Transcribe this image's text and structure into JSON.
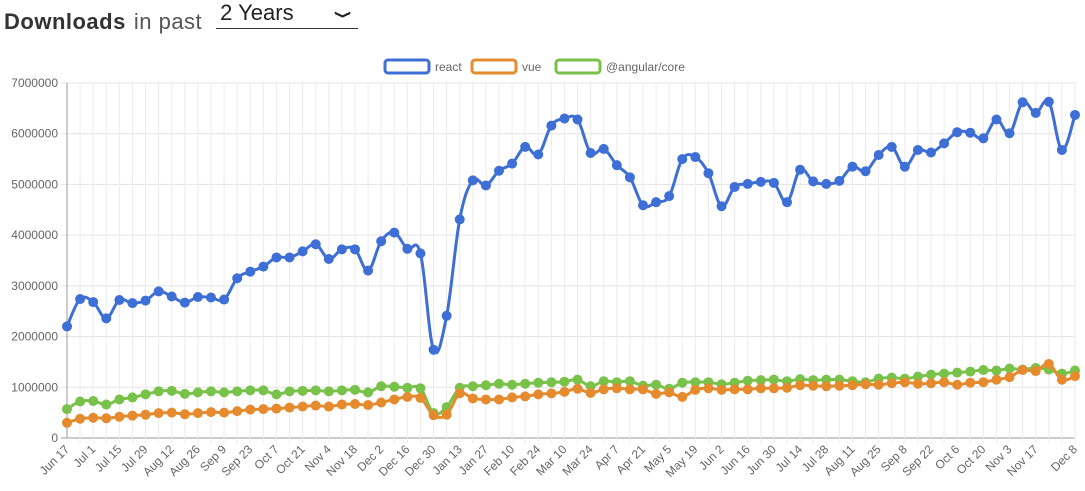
{
  "header": {
    "title": "Downloads",
    "subtitle": "in past",
    "range_value": "2 Years",
    "range_icon": "chevron-down-icon"
  },
  "chart_data": {
    "type": "line",
    "x": [
      "Jun 17",
      "Jun 24",
      "Jul 1",
      "Jul 8",
      "Jul 15",
      "Jul 22",
      "Jul 29",
      "Aug 5",
      "Aug 12",
      "Aug 19",
      "Aug 26",
      "Sep 2",
      "Sep 9",
      "Sep 16",
      "Sep 23",
      "Sep 30",
      "Oct 7",
      "Oct 14",
      "Oct 21",
      "Oct 28",
      "Nov 4",
      "Nov 11",
      "Nov 18",
      "Nov 25",
      "Dec 2",
      "Dec 9",
      "Dec 16",
      "Dec 23",
      "Dec 30",
      "Jan 6",
      "Jan 13",
      "Jan 20",
      "Jan 27",
      "Feb 3",
      "Feb 10",
      "Feb 17",
      "Feb 24",
      "Mar 3",
      "Mar 10",
      "Mar 17",
      "Mar 24",
      "Mar 31",
      "Apr 7",
      "Apr 14",
      "Apr 21",
      "Apr 28",
      "May 5",
      "May 12",
      "May 19",
      "May 26",
      "Jun 2",
      "Jun 9",
      "Jun 16",
      "Jun 23",
      "Jun 30",
      "Jul 7",
      "Jul 14",
      "Jul 21",
      "Jul 28",
      "Aug 4",
      "Aug 11",
      "Aug 18",
      "Aug 25",
      "Sep 1",
      "Sep 8",
      "Sep 15",
      "Sep 22",
      "Sep 29",
      "Oct 6",
      "Oct 13",
      "Oct 20",
      "Oct 27",
      "Nov 3",
      "Nov 10",
      "Nov 17",
      "Nov 24",
      "Dec 1",
      "Dec 8"
    ],
    "x_tick_labels": [
      "Jun 17",
      "Jul 1",
      "Jul 15",
      "Jul 29",
      "Aug 12",
      "Aug 26",
      "Sep 9",
      "Sep 23",
      "Oct 7",
      "Oct 21",
      "Nov 4",
      "Nov 18",
      "Dec 2",
      "Dec 16",
      "Dec 30",
      "Jan 13",
      "Jan 27",
      "Feb 10",
      "Feb 24",
      "Mar 10",
      "Mar 24",
      "Apr 7",
      "Apr 21",
      "May 5",
      "May 19",
      "Jun 2",
      "Jun 16",
      "Jun 30",
      "Jul 14",
      "Jul 28",
      "Aug 11",
      "Aug 25",
      "Sep 8",
      "Sep 22",
      "Oct 6",
      "Oct 20",
      "Nov 3",
      "Nov 17",
      "Dec 8"
    ],
    "ylim": [
      0,
      7000000
    ],
    "y_ticks": [
      0,
      1000000,
      2000000,
      3000000,
      4000000,
      5000000,
      6000000,
      7000000
    ],
    "grid": true,
    "legend_position": "top-center",
    "series": [
      {
        "name": "react",
        "color": "#3d6fd6",
        "values": [
          2200000,
          2740000,
          2680000,
          2360000,
          2720000,
          2660000,
          2710000,
          2890000,
          2790000,
          2670000,
          2780000,
          2770000,
          2730000,
          3150000,
          3280000,
          3380000,
          3560000,
          3560000,
          3680000,
          3820000,
          3530000,
          3720000,
          3720000,
          3300000,
          3880000,
          4050000,
          3730000,
          3640000,
          1740000,
          2410000,
          4310000,
          5080000,
          4980000,
          5270000,
          5410000,
          5740000,
          5590000,
          6160000,
          6300000,
          6280000,
          5620000,
          5700000,
          5380000,
          5140000,
          4590000,
          4650000,
          4770000,
          5500000,
          5540000,
          5220000,
          4570000,
          4950000,
          5010000,
          5050000,
          5030000,
          4650000,
          5290000,
          5060000,
          5010000,
          5070000,
          5350000,
          5260000,
          5580000,
          5740000,
          5350000,
          5680000,
          5630000,
          5810000,
          6030000,
          6020000,
          5910000,
          6280000,
          6010000,
          6620000,
          6410000,
          6630000,
          5680000,
          6370000
        ]
      },
      {
        "name": "vue",
        "color": "#e68a2e",
        "values": [
          300000,
          380000,
          400000,
          390000,
          420000,
          440000,
          460000,
          490000,
          500000,
          470000,
          490000,
          510000,
          500000,
          530000,
          560000,
          570000,
          580000,
          600000,
          620000,
          640000,
          620000,
          660000,
          670000,
          650000,
          700000,
          760000,
          810000,
          790000,
          450000,
          460000,
          880000,
          780000,
          760000,
          760000,
          800000,
          820000,
          860000,
          880000,
          910000,
          970000,
          890000,
          960000,
          980000,
          960000,
          960000,
          870000,
          900000,
          810000,
          950000,
          980000,
          950000,
          960000,
          960000,
          980000,
          980000,
          990000,
          1040000,
          1030000,
          1020000,
          1030000,
          1040000,
          1060000,
          1050000,
          1080000,
          1100000,
          1070000,
          1080000,
          1100000,
          1050000,
          1090000,
          1100000,
          1150000,
          1200000,
          1340000,
          1320000,
          1460000,
          1150000,
          1220000
        ]
      },
      {
        "name": "@angular/core",
        "color": "#78c24a",
        "values": [
          570000,
          720000,
          730000,
          660000,
          760000,
          800000,
          860000,
          920000,
          930000,
          870000,
          900000,
          920000,
          900000,
          920000,
          940000,
          940000,
          860000,
          920000,
          930000,
          940000,
          920000,
          940000,
          950000,
          900000,
          1020000,
          1010000,
          990000,
          980000,
          490000,
          610000,
          990000,
          1020000,
          1040000,
          1070000,
          1050000,
          1070000,
          1090000,
          1100000,
          1110000,
          1150000,
          1020000,
          1120000,
          1100000,
          1120000,
          1030000,
          1050000,
          970000,
          1090000,
          1100000,
          1100000,
          1060000,
          1090000,
          1130000,
          1140000,
          1150000,
          1120000,
          1160000,
          1140000,
          1150000,
          1150000,
          1120000,
          1100000,
          1170000,
          1190000,
          1170000,
          1210000,
          1250000,
          1270000,
          1290000,
          1310000,
          1340000,
          1330000,
          1370000,
          1350000,
          1380000,
          1350000,
          1270000,
          1330000
        ]
      }
    ]
  }
}
